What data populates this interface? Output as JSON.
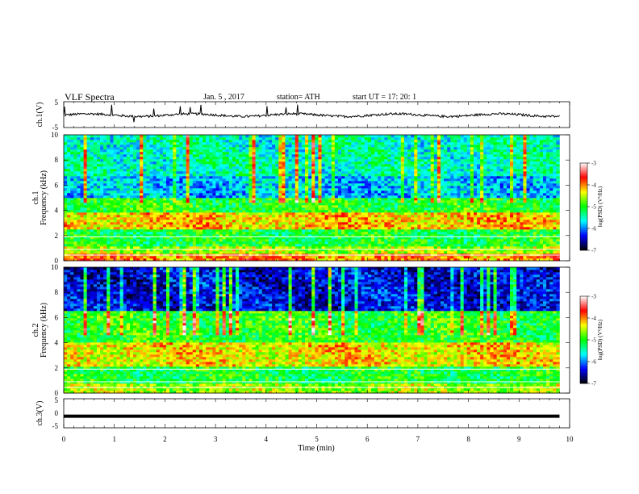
{
  "header": {
    "title": "VLF  Spectra",
    "date": "Jan.  5  , 2017",
    "station": "station= ATH",
    "start": "start  UT  =    17: 20: 1"
  },
  "chart_data": [
    {
      "type": "line",
      "name": "ch1-waveform",
      "ylabel": "ch.1(V)",
      "xlim": [
        0,
        10
      ],
      "ylim": [
        -5,
        5
      ],
      "yticks": [
        "5",
        "-5"
      ],
      "baseline": -0.2,
      "description": "noisy waveform near 0 V with sporadic spikes",
      "color": "#000000"
    },
    {
      "type": "heatmap",
      "name": "ch1-spectrogram",
      "ylabel_line1": "ch.1",
      "ylabel_line2": "Frequency  (kHz)",
      "xlim": [
        0,
        9.8
      ],
      "ylim": [
        0,
        10
      ],
      "yticks": [
        "0",
        "2",
        "4",
        "6",
        "8",
        "10"
      ],
      "colorbar": {
        "label": "log(PSD) (V²/Hz)",
        "range": [
          -7,
          -3
        ],
        "ticks": [
          "-3",
          "-4",
          "-5",
          "-6",
          "-7"
        ]
      },
      "bands": [
        {
          "from": 0.0,
          "to": 0.6,
          "level": -4.0
        },
        {
          "from": 0.6,
          "to": 1.2,
          "level": -4.6
        },
        {
          "from": 1.2,
          "to": 2.5,
          "level": -5.1
        },
        {
          "from": 2.5,
          "to": 3.8,
          "level": -4.2
        },
        {
          "from": 3.8,
          "to": 5.0,
          "level": -5.0
        },
        {
          "from": 5.0,
          "to": 6.8,
          "level": -5.8
        },
        {
          "from": 6.8,
          "to": 10.0,
          "level": -5.5
        }
      ]
    },
    {
      "type": "heatmap",
      "name": "ch2-spectrogram",
      "ylabel_line1": "ch.2",
      "ylabel_line2": "Frequency  (kHz)",
      "xlim": [
        0,
        9.8
      ],
      "ylim": [
        0,
        10
      ],
      "yticks": [
        "0",
        "2",
        "4",
        "6",
        "8",
        "10"
      ],
      "colorbar": {
        "label": "log(PSD) (V²/Hz)",
        "range": [
          -7,
          -3
        ],
        "ticks": [
          "-3",
          "-4",
          "-5",
          "-6",
          "-7"
        ]
      },
      "bands": [
        {
          "from": 0.0,
          "to": 0.8,
          "level": -4.6
        },
        {
          "from": 0.8,
          "to": 2.2,
          "level": -5.1
        },
        {
          "from": 2.2,
          "to": 4.0,
          "level": -4.3
        },
        {
          "from": 4.0,
          "to": 6.5,
          "level": -5.0
        },
        {
          "from": 6.5,
          "to": 10.0,
          "level": -6.4
        }
      ]
    },
    {
      "type": "line",
      "name": "ch3-waveform",
      "ylabel": "ch.3(V)",
      "xlim": [
        0,
        10
      ],
      "ylim": [
        -5,
        5
      ],
      "yticks": [
        "5",
        "0",
        "-5"
      ],
      "baseline": -1.0,
      "description": "thick constant trace near -1 V",
      "color": "#000000"
    }
  ],
  "xaxis": {
    "label": "Time  (min)",
    "ticks": [
      "0",
      "1",
      "2",
      "3",
      "4",
      "5",
      "6",
      "7",
      "8",
      "9",
      "10"
    ],
    "range": [
      0,
      10
    ]
  },
  "colormap": [
    "#000000",
    "#0000ff",
    "#00ffff",
    "#00ff00",
    "#ffff00",
    "#ff0000",
    "#ffffff"
  ]
}
